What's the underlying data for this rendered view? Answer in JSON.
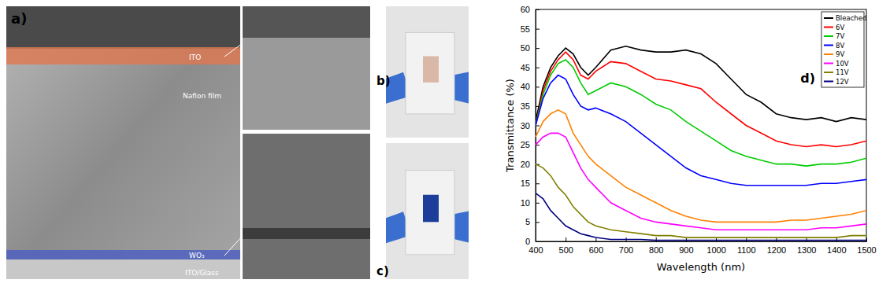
{
  "figure": {
    "panel_a": {
      "label": "a)",
      "layers": [
        "ITO",
        "Nafion film",
        "WO₃",
        "ITO/Glass"
      ]
    },
    "panel_b": {
      "label": "b)"
    },
    "panel_c": {
      "label": "c)"
    }
  },
  "chart_data": {
    "type": "line",
    "annotations": [
      "d)"
    ],
    "x_label": "Wavelength (nm)",
    "y_label": "Transmittance (%)",
    "legend": "top-right",
    "xlim": [
      400,
      1500
    ],
    "xticks": [
      400,
      500,
      600,
      700,
      800,
      900,
      1000,
      1100,
      1200,
      1300,
      1400,
      1500
    ],
    "ylim": [
      0,
      60
    ],
    "yticks": [
      0,
      5,
      10,
      15,
      20,
      25,
      30,
      35,
      40,
      45,
      50,
      55,
      60
    ],
    "x": [
      400,
      425,
      450,
      475,
      500,
      525,
      550,
      575,
      600,
      650,
      700,
      750,
      800,
      850,
      900,
      950,
      1000,
      1050,
      1100,
      1150,
      1200,
      1250,
      1300,
      1350,
      1400,
      1450,
      1500
    ],
    "series": [
      {
        "name": "Bleached",
        "color": "#000000",
        "values": [
          31,
          40,
          45,
          48,
          50,
          48.5,
          45,
          43,
          45,
          49.5,
          50.5,
          49.5,
          49,
          49,
          49.5,
          48.5,
          46,
          42,
          38,
          36,
          33,
          32,
          31.5,
          32,
          31,
          32,
          31.5
        ]
      },
      {
        "name": "6V",
        "color": "#ff0000",
        "values": [
          30,
          39,
          44,
          47,
          49,
          47,
          43,
          42,
          44,
          46.5,
          46,
          44,
          42,
          41.5,
          40.5,
          39.5,
          36,
          33,
          30,
          28,
          26,
          25,
          24.5,
          25,
          24.5,
          25,
          26
        ]
      },
      {
        "name": "7V",
        "color": "#00cc00",
        "values": [
          30,
          38,
          43,
          46,
          47,
          45,
          41,
          38,
          39,
          41,
          40,
          38,
          35.5,
          34,
          31,
          28.5,
          26,
          23.5,
          22,
          21,
          20,
          20,
          19.5,
          20,
          20,
          20.5,
          21.5
        ]
      },
      {
        "name": "8V",
        "color": "#0000ff",
        "values": [
          30,
          37,
          41,
          43,
          42,
          38,
          35,
          34,
          34.5,
          33,
          31,
          28,
          25,
          22,
          19,
          17,
          16,
          15,
          14.5,
          14.5,
          14.5,
          14.5,
          14.5,
          15,
          15,
          15.5,
          16
        ]
      },
      {
        "name": "9V",
        "color": "#ff8000",
        "values": [
          27,
          31,
          33,
          34,
          33,
          28,
          25,
          22,
          20,
          17,
          14,
          12,
          10,
          8,
          6.5,
          5.5,
          5,
          5,
          5,
          5,
          5,
          5.5,
          5.5,
          6,
          6.5,
          7,
          8
        ]
      },
      {
        "name": "10V",
        "color": "#ff00ff",
        "values": [
          25,
          27,
          28,
          28,
          27,
          23,
          19,
          16,
          14,
          10,
          8,
          6,
          5,
          4.5,
          4,
          3.5,
          3,
          3,
          3,
          3,
          3,
          3,
          3,
          3.5,
          3.5,
          4,
          4.5
        ]
      },
      {
        "name": "11V",
        "color": "#808000",
        "values": [
          20,
          19,
          17,
          14,
          12,
          9,
          7,
          5,
          4,
          3,
          2.5,
          2,
          1.5,
          1.5,
          1,
          1,
          1,
          1,
          1,
          1,
          1,
          1,
          1,
          1,
          1,
          1.5,
          1.5
        ]
      },
      {
        "name": "12V",
        "color": "#000080",
        "values": [
          12.5,
          11,
          8,
          6,
          4,
          3,
          2,
          1.5,
          1,
          0.5,
          0.5,
          0.5,
          0.3,
          0.3,
          0.3,
          0.3,
          0.3,
          0.3,
          0.3,
          0.3,
          0.3,
          0.3,
          0.3,
          0.3,
          0.3,
          0.3,
          0.3
        ]
      }
    ]
  }
}
